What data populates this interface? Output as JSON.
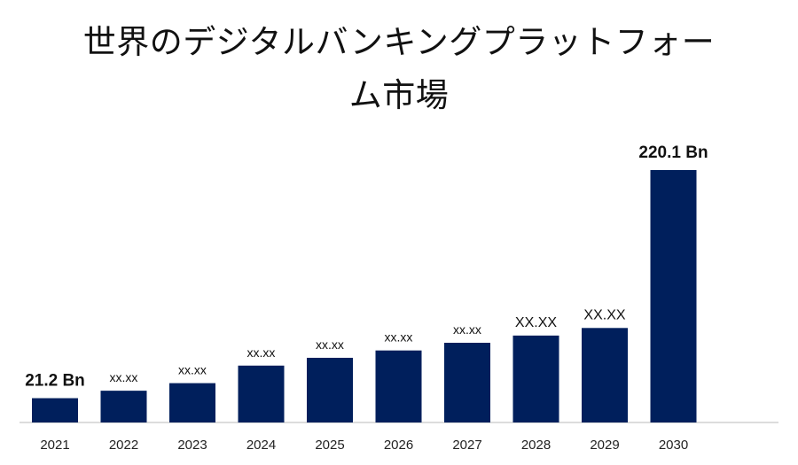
{
  "chart_data": {
    "type": "bar",
    "title": "世界のデジタルバンキングプラットフォーム市場",
    "xlabel": "",
    "ylabel": "",
    "categories": [
      "2021",
      "2022",
      "2023",
      "2024",
      "2025",
      "2026",
      "2027",
      "2028",
      "2029",
      "2030"
    ],
    "values": [
      21.2,
      27.7,
      34.3,
      49.6,
      56.4,
      62.8,
      69.5,
      75.8,
      82.4,
      220.1
    ],
    "value_labels": [
      "21.2 Bn",
      "xx.xx",
      "xx.xx",
      "xx.xx",
      "xx.xx",
      "xx.xx",
      "xx.xx",
      "XX.XX",
      "XX.XX",
      "220.1 Bn"
    ],
    "bar_color": "#001f5c",
    "grid": false,
    "legend": "none"
  }
}
